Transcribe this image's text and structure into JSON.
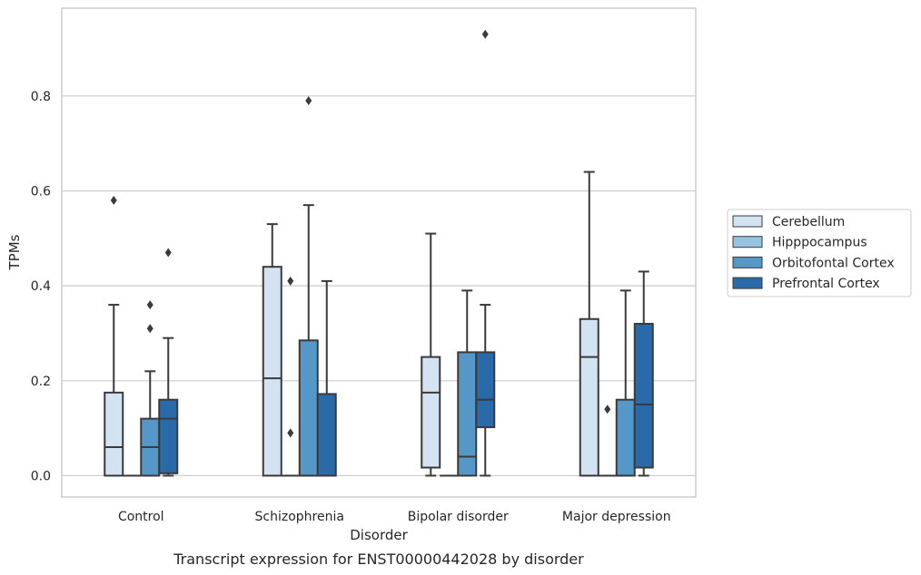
{
  "chart_data": {
    "type": "box",
    "caption": "Transcript expression for ENST00000442028 by disorder",
    "xlabel": "Disorder",
    "ylabel": "TPMs",
    "ylim": [
      -0.045,
      0.985
    ],
    "yticks": [
      "0.0",
      "0.2",
      "0.4",
      "0.6",
      "0.8"
    ],
    "grid": "horizontal",
    "legend_position": "right",
    "categories": [
      "Control",
      "Schizophrenia",
      "Bipolar disorder",
      "Major depression"
    ],
    "series": [
      {
        "name": "Cerebellum",
        "color": "#d4e3f2",
        "boxes": [
          {
            "q1": 0.0,
            "median": 0.06,
            "q3": 0.175,
            "whislo": 0.0,
            "whishi": 0.36,
            "fliers": [
              0.58
            ]
          },
          {
            "q1": 0.0,
            "median": 0.205,
            "q3": 0.44,
            "whislo": 0.0,
            "whishi": 0.53,
            "fliers": []
          },
          {
            "q1": 0.017,
            "median": 0.175,
            "q3": 0.25,
            "whislo": 0.0,
            "whishi": 0.51,
            "fliers": []
          },
          {
            "q1": 0.0,
            "median": 0.25,
            "q3": 0.33,
            "whislo": 0.0,
            "whishi": 0.64,
            "fliers": []
          }
        ]
      },
      {
        "name": "Hipppocampus",
        "color": "#94c4df",
        "boxes": [
          {
            "q1": 0.0,
            "median": 0.0,
            "q3": 0.0,
            "whislo": 0.0,
            "whishi": 0.0,
            "fliers": []
          },
          {
            "q1": 0.0,
            "median": 0.0,
            "q3": 0.0,
            "whislo": 0.0,
            "whishi": 0.0,
            "fliers": [
              0.41,
              0.09
            ]
          },
          {
            "q1": 0.0,
            "median": 0.0,
            "q3": 0.0,
            "whislo": 0.0,
            "whishi": 0.0,
            "fliers": []
          },
          {
            "q1": 0.0,
            "median": 0.0,
            "q3": 0.0,
            "whislo": 0.0,
            "whishi": 0.0,
            "fliers": [
              0.14
            ]
          }
        ]
      },
      {
        "name": "Orbitofontal Cortex",
        "color": "#5597c7",
        "boxes": [
          {
            "q1": 0.0,
            "median": 0.06,
            "q3": 0.12,
            "whislo": 0.0,
            "whishi": 0.22,
            "fliers": [
              0.36,
              0.31
            ]
          },
          {
            "q1": 0.0,
            "median": 0.0,
            "q3": 0.285,
            "whislo": 0.0,
            "whishi": 0.57,
            "fliers": [
              0.79
            ]
          },
          {
            "q1": 0.0,
            "median": 0.04,
            "q3": 0.26,
            "whislo": 0.0,
            "whishi": 0.39,
            "fliers": []
          },
          {
            "q1": 0.0,
            "median": 0.0,
            "q3": 0.16,
            "whislo": 0.0,
            "whishi": 0.39,
            "fliers": []
          }
        ]
      },
      {
        "name": "Prefrontal Cortex",
        "color": "#2b6aa8",
        "boxes": [
          {
            "q1": 0.005,
            "median": 0.12,
            "q3": 0.16,
            "whislo": 0.0,
            "whishi": 0.29,
            "fliers": [
              0.47
            ]
          },
          {
            "q1": 0.0,
            "median": 0.0,
            "q3": 0.172,
            "whislo": 0.0,
            "whishi": 0.41,
            "fliers": []
          },
          {
            "q1": 0.102,
            "median": 0.16,
            "q3": 0.26,
            "whislo": 0.0,
            "whishi": 0.36,
            "fliers": [
              0.93
            ]
          },
          {
            "q1": 0.017,
            "median": 0.15,
            "q3": 0.32,
            "whislo": 0.0,
            "whishi": 0.43,
            "fliers": []
          }
        ]
      }
    ]
  }
}
